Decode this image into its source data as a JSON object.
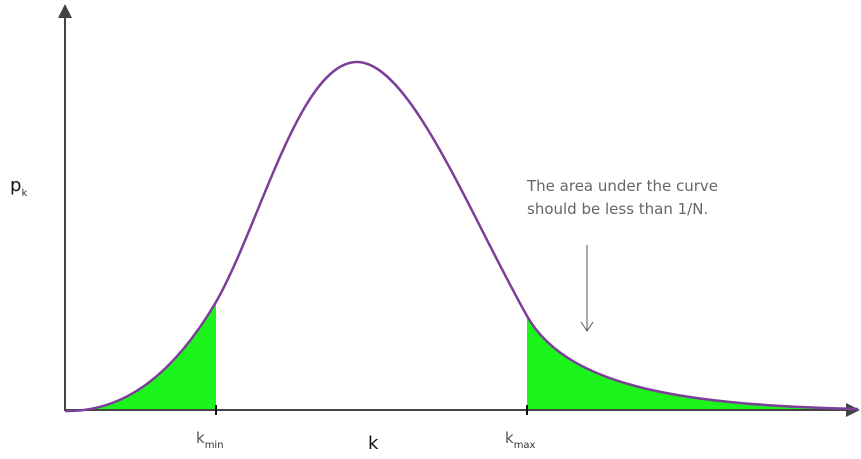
{
  "y_axis_label": {
    "main": "p",
    "sub": "k"
  },
  "x_axis_label": "k",
  "markers": [
    {
      "main": "k",
      "sub": "min"
    },
    {
      "main": "k",
      "sub": "max"
    }
  ],
  "annotation": [
    "The area under the curve",
    "should be less than 1/N."
  ]
}
